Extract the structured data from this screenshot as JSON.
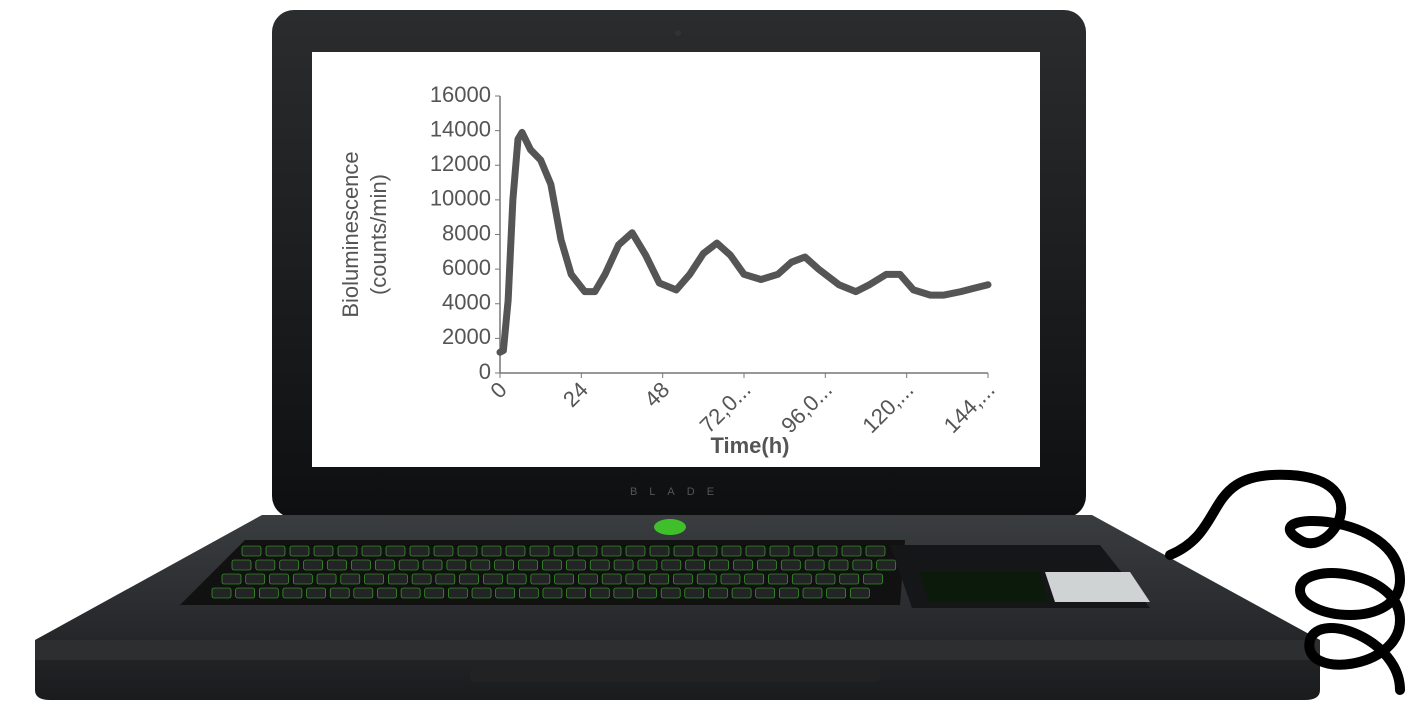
{
  "chart_data": {
    "type": "line",
    "ylabel": [
      "Bioluminescence",
      "(counts/min)"
    ],
    "xlabel": "Time(h)",
    "x": [
      0,
      1,
      2.4,
      3.8,
      5.3,
      6.5,
      9,
      12,
      15,
      18,
      21,
      25,
      28,
      31,
      35,
      39,
      43,
      47,
      52,
      56,
      60,
      64,
      68,
      72,
      77,
      82,
      86,
      90,
      94,
      100,
      105,
      109,
      114,
      118,
      122,
      127,
      131,
      136,
      140,
      144
    ],
    "values": [
      1200,
      1300,
      4200,
      10000,
      13500,
      13900,
      12900,
      12300,
      10900,
      7700,
      5700,
      4700,
      4700,
      5700,
      7400,
      8100,
      6800,
      5200,
      4800,
      5700,
      6900,
      7500,
      6800,
      5700,
      5400,
      5700,
      6400,
      6700,
      6000,
      5100,
      4700,
      5100,
      5700,
      5700,
      4800,
      4500,
      4500,
      4700,
      4900,
      5100
    ],
    "color": "#555555",
    "xlim": [
      0,
      144
    ],
    "ylim": [
      0,
      16000
    ],
    "xticks": [
      0,
      24,
      48,
      {
        "value": 72,
        "label": "72,0..."
      },
      {
        "value": 96,
        "label": "96,0..."
      },
      {
        "value": 120,
        "label": "120,..."
      },
      {
        "value": 144,
        "label": "144,..."
      }
    ],
    "yticks": [
      0,
      2000,
      4000,
      6000,
      8000,
      10000,
      12000,
      14000,
      16000
    ]
  },
  "brand": "BLADE"
}
